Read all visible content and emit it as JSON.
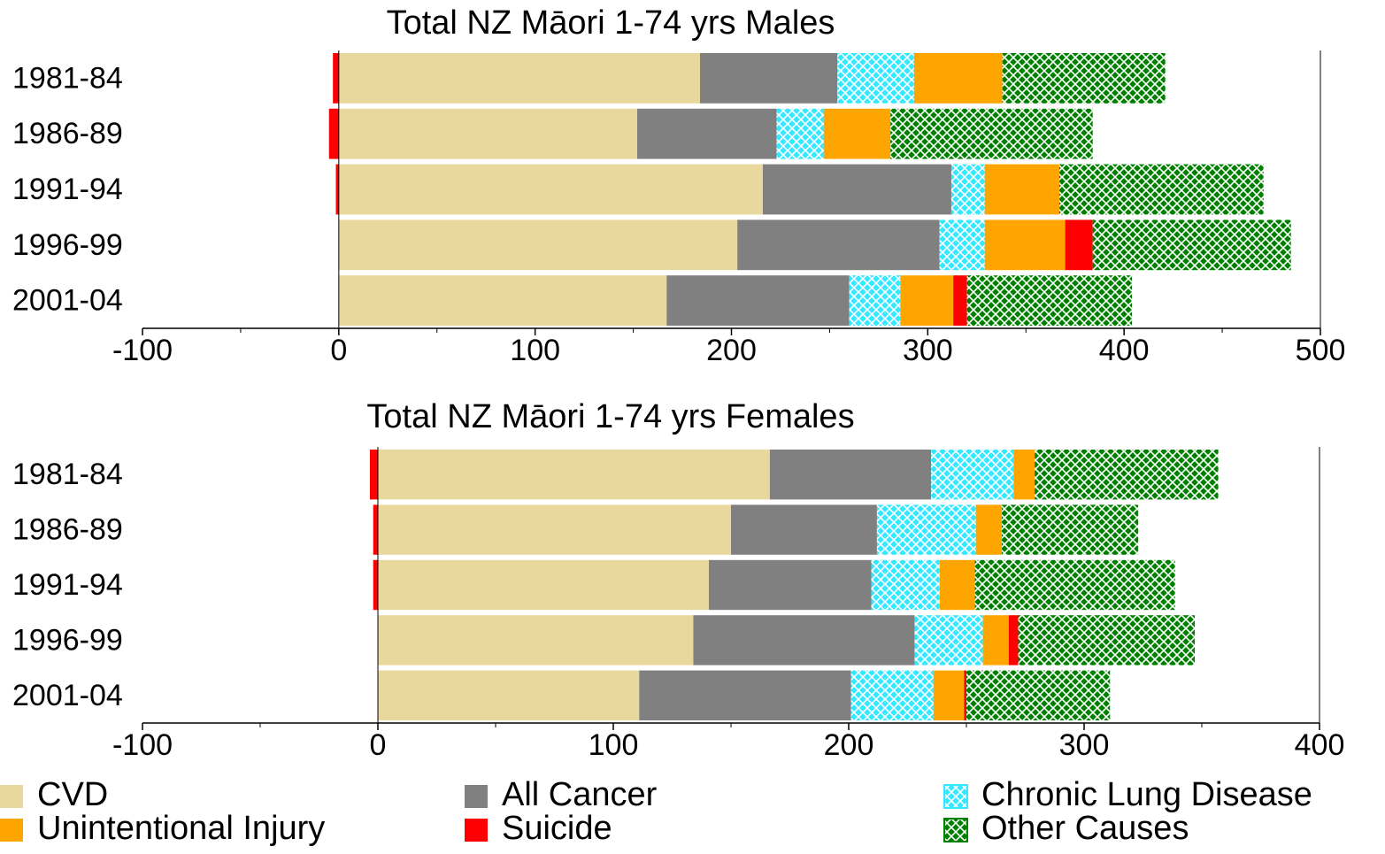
{
  "chart_data": [
    {
      "type": "bar",
      "orientation": "horizontal",
      "stacked": true,
      "title": "Total NZ Māori   1-74 yrs   Males",
      "categories": [
        "1981-84",
        "1986-89",
        "1991-94",
        "1996-99",
        "2001-04"
      ],
      "xlim": [
        -100,
        500
      ],
      "xticks": [
        -100,
        0,
        100,
        200,
        300,
        400,
        500
      ],
      "series": [
        {
          "name": "CVD",
          "color": "#e8d89e",
          "values": [
            184,
            152,
            216,
            203,
            167
          ]
        },
        {
          "name": "All Cancer",
          "color": "#808080",
          "values": [
            70,
            71,
            96,
            103,
            93
          ]
        },
        {
          "name": "Chronic Lung Disease",
          "color": "#33e8ff",
          "pattern": "crosshatch",
          "values": [
            39,
            24,
            17,
            23,
            26
          ]
        },
        {
          "name": "Unintentional Injury",
          "color": "#ffa500",
          "values": [
            45,
            34,
            38,
            41,
            27
          ]
        },
        {
          "name": "Suicide",
          "color": "#ff0000",
          "values": [
            -3,
            -5,
            -1.5,
            14,
            7
          ]
        },
        {
          "name": "Other Causes",
          "color": "#008000",
          "pattern": "crosshatch",
          "values": [
            83,
            103,
            104,
            101,
            84
          ]
        }
      ]
    },
    {
      "type": "bar",
      "orientation": "horizontal",
      "stacked": true,
      "title": "Total NZ Māori   1-74 yrs   Females",
      "categories": [
        "1981-84",
        "1986-89",
        "1991-94",
        "1996-99",
        "2001-04"
      ],
      "xlim": [
        -100,
        400
      ],
      "xticks": [
        -100,
        0,
        100,
        200,
        300,
        400
      ],
      "series": [
        {
          "color": "#e8d89e",
          "values": [
            166.5,
            150,
            140.6,
            134,
            111
          ]
        },
        {
          "color": "#808080",
          "values": [
            68.5,
            62,
            69,
            94,
            90
          ]
        },
        {
          "color": "#33e8ff",
          "pattern": "crosshatch",
          "values": [
            35,
            42,
            29,
            29,
            35
          ]
        },
        {
          "color": "#ffa500",
          "values": [
            9,
            11,
            15,
            11,
            13
          ]
        },
        {
          "color": "#ff0000",
          "values": [
            -3.4,
            -2,
            -2,
            4,
            1
          ]
        },
        {
          "color": "#008000",
          "pattern": "crosshatch",
          "values": [
            78,
            58,
            85,
            75,
            61
          ]
        }
      ]
    }
  ]
}
